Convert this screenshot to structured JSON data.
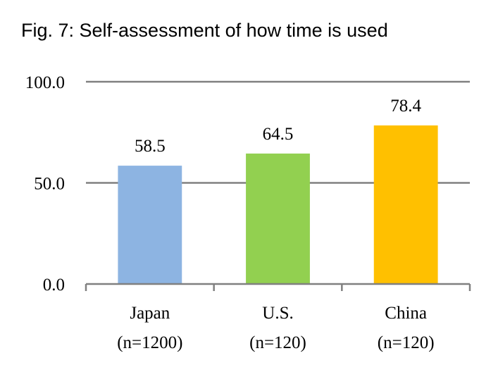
{
  "chart_data": {
    "type": "bar",
    "title": "Fig. 7: Self-assessment of how time is used",
    "categories": [
      "Japan",
      "U.S.",
      "China"
    ],
    "category_sublabels": [
      "(n=1200)",
      "(n=120)",
      "(n=120)"
    ],
    "values": [
      58.5,
      64.5,
      78.4
    ],
    "value_labels": [
      "58.5",
      "64.5",
      "78.4"
    ],
    "colors": [
      "#8DB4E2",
      "#92D050",
      "#FFC000"
    ],
    "ylim": [
      0,
      100
    ],
    "yticks": [
      0,
      50,
      100
    ],
    "ytick_labels": [
      "0.0",
      "50.0",
      "100.0"
    ],
    "xlabel": "",
    "ylabel": "",
    "grid": true,
    "grid_color": "#808080"
  }
}
